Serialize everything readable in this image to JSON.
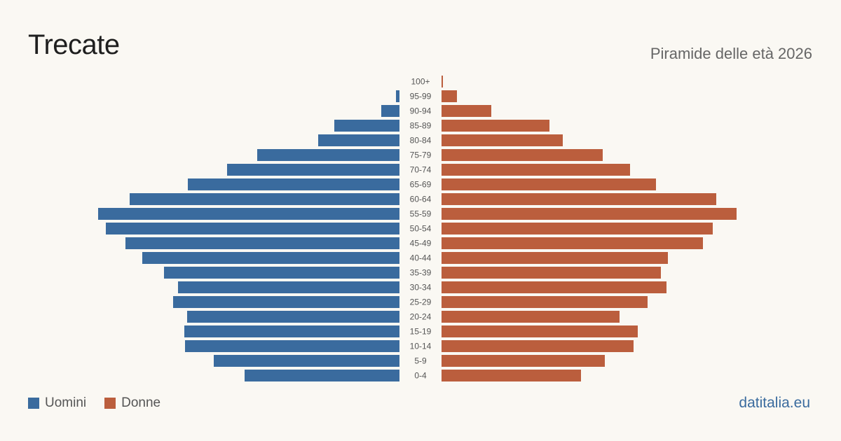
{
  "header": {
    "title": "Trecate",
    "subtitle": "Piramide delle età 2026"
  },
  "legend": {
    "men_label": "Uomini",
    "women_label": "Donne"
  },
  "footer": {
    "source": "datitalia.eu"
  },
  "colors": {
    "men": "#3a6b9e",
    "women": "#bb5e3d"
  },
  "chart_data": {
    "type": "bar",
    "orientation": "horizontal-pyramid",
    "title": "Trecate",
    "subtitle": "Piramide delle età 2026",
    "categories": [
      "100+",
      "95-99",
      "90-94",
      "85-89",
      "80-84",
      "75-79",
      "70-74",
      "65-69",
      "60-64",
      "55-59",
      "50-54",
      "45-49",
      "40-44",
      "35-39",
      "30-34",
      "25-29",
      "20-24",
      "15-19",
      "10-14",
      "5-9",
      "0-4"
    ],
    "series": [
      {
        "name": "Uomini",
        "values": [
          0,
          5,
          26,
          93,
          116,
          203,
          246,
          302,
          385,
          430,
          419,
          391,
          367,
          336,
          316,
          323,
          303,
          307,
          306,
          265,
          221
        ]
      },
      {
        "name": "Donne",
        "values": [
          2,
          22,
          71,
          154,
          173,
          230,
          269,
          306,
          392,
          421,
          387,
          373,
          323,
          313,
          321,
          294,
          254,
          280,
          274,
          233,
          199
        ]
      }
    ],
    "legend_position": "bottom-left",
    "grid": false
  }
}
